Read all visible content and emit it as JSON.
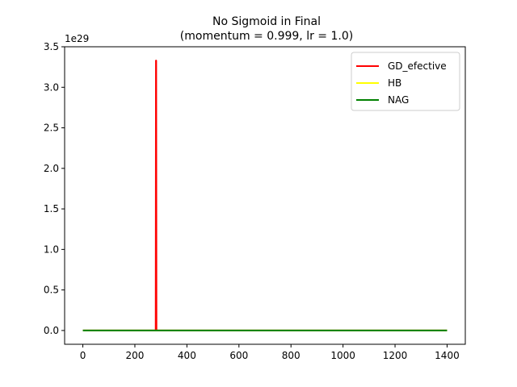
{
  "chart_data": {
    "type": "line",
    "title_line1": "No Sigmoid in Final",
    "title_line2": "(momentum = 0.999, lr = 1.0)",
    "xlabel": "",
    "ylabel": "",
    "y_offset_label": "1e29",
    "xlim": [
      -70,
      1470
    ],
    "ylim": [
      -0.17,
      3.5
    ],
    "x_ticks": [
      0,
      200,
      400,
      600,
      800,
      1000,
      1200,
      1400
    ],
    "x_tick_labels": [
      "0",
      "200",
      "400",
      "600",
      "800",
      "1000",
      "1200",
      "1400"
    ],
    "y_ticks": [
      0.0,
      0.5,
      1.0,
      1.5,
      2.0,
      2.5,
      3.0,
      3.5
    ],
    "y_tick_labels": [
      "0.0",
      "0.5",
      "1.0",
      "1.5",
      "2.0",
      "2.5",
      "3.0",
      "3.5"
    ],
    "legend_position": "top-right",
    "grid": false,
    "series": [
      {
        "name": "GD_efective",
        "color": "#ff0000",
        "x": [
          0,
          280,
          281,
          282,
          283,
          1400
        ],
        "y": [
          0,
          0,
          3.33,
          3.33,
          0,
          0
        ]
      },
      {
        "name": "HB",
        "color": "#ffff00",
        "x": [
          0,
          1400
        ],
        "y": [
          0,
          0
        ]
      },
      {
        "name": "NAG",
        "color": "#008000",
        "x": [
          0,
          1400
        ],
        "y": [
          0,
          0
        ]
      }
    ]
  }
}
